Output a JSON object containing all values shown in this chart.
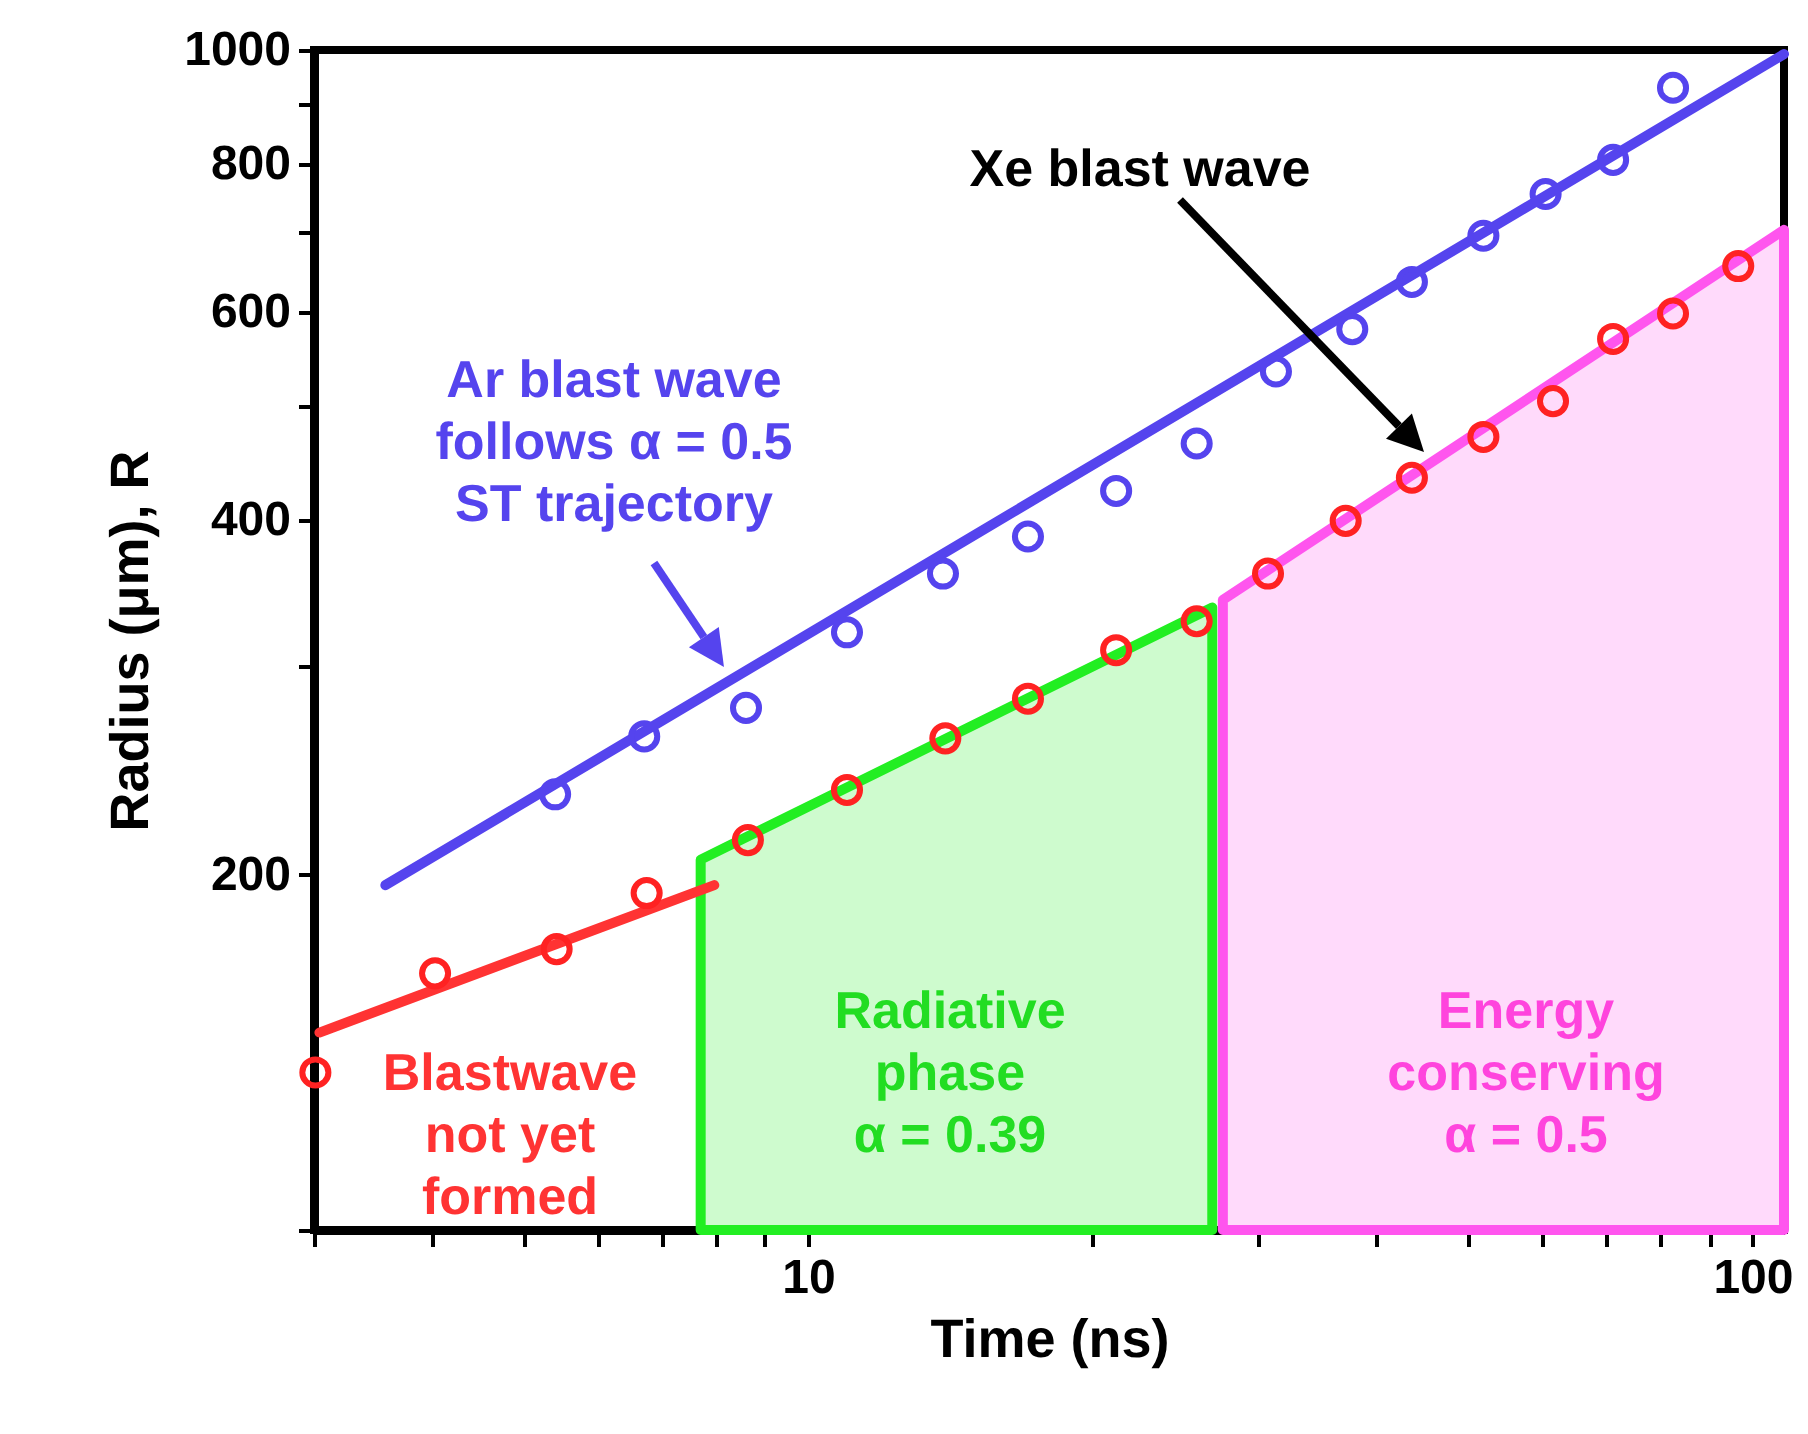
{
  "chart_data": {
    "type": "scatter",
    "xlabel": "Time (ns)",
    "ylabel": "Radius (μm), R",
    "log": "xy",
    "xlim": [
      3,
      108
    ],
    "ylim": [
      100,
      1000
    ],
    "xticks": [
      {
        "value": 3,
        "label": null
      },
      {
        "value": 4,
        "label": null
      },
      {
        "value": 5,
        "label": null
      },
      {
        "value": 6,
        "label": null
      },
      {
        "value": 7,
        "label": null
      },
      {
        "value": 8,
        "label": null
      },
      {
        "value": 9,
        "label": null
      },
      10,
      {
        "value": 20,
        "label": null
      },
      {
        "value": 30,
        "label": null
      },
      {
        "value": 40,
        "label": null
      },
      {
        "value": 50,
        "label": null
      },
      {
        "value": 60,
        "label": null
      },
      {
        "value": 70,
        "label": null
      },
      {
        "value": 80,
        "label": null
      },
      {
        "value": 90,
        "label": null
      },
      100
    ],
    "yticks": [
      {
        "value": 100,
        "label": null
      },
      200,
      {
        "value": 300,
        "label": null
      },
      400,
      {
        "value": 500,
        "label": null
      },
      600,
      {
        "value": 700,
        "label": null
      },
      800,
      {
        "value": 900,
        "label": null
      },
      1000
    ],
    "series": [
      {
        "type": "area",
        "color": "#22ee22",
        "x": [
          7.7,
          26.8
        ],
        "values": [
          206,
          337
        ]
      },
      {
        "type": "area",
        "color": "#ff55ee",
        "x": [
          27.5,
          108
        ],
        "values": [
          342,
          704
        ]
      },
      {
        "type": "line",
        "color": "#5544ee",
        "x": [
          3.57,
          108
        ],
        "values": [
          196,
          992
        ]
      },
      {
        "type": "line",
        "color": "#ff3333",
        "x": [
          3.04,
          7.96
        ],
        "values": [
          147,
          196
        ]
      },
      {
        "color": "#5544ee",
        "marker": "circle",
        "x": [
          5.4,
          6.71,
          8.6,
          11.0,
          13.9,
          17.1,
          21.2,
          25.8,
          31.3,
          37.7,
          43.6,
          51.9,
          60.4,
          71.2,
          82.4
        ],
        "values": [
          234,
          262,
          277,
          321,
          360,
          387,
          423,
          464,
          534,
          580,
          636,
          696,
          755,
          807,
          929
        ]
      },
      {
        "color": "#ff2222",
        "marker": "circle",
        "x": [
          3.01,
          4.03,
          5.42,
          6.75,
          8.64,
          11.0,
          13.98,
          17.1,
          21.2,
          25.8,
          30.7,
          37.1,
          43.6,
          51.9,
          61.5,
          71.2,
          82.4,
          96.6
        ],
        "values": [
          136,
          165,
          173,
          193,
          214,
          236,
          261,
          282,
          310,
          328,
          360,
          399,
          434,
          470,
          504,
          569,
          598,
          656
        ]
      }
    ],
    "annotations": [
      {
        "text": "Ar blast wave\nfollows α = 0.5\nST trajectory",
        "x": 8.15,
        "y": 300
      },
      "Xe blast wave",
      "Blastwave\nnot yet\nformed",
      "Radiative\nphase\nα = 0.39",
      "Energy\nconserving\nα = 0.5"
    ]
  }
}
